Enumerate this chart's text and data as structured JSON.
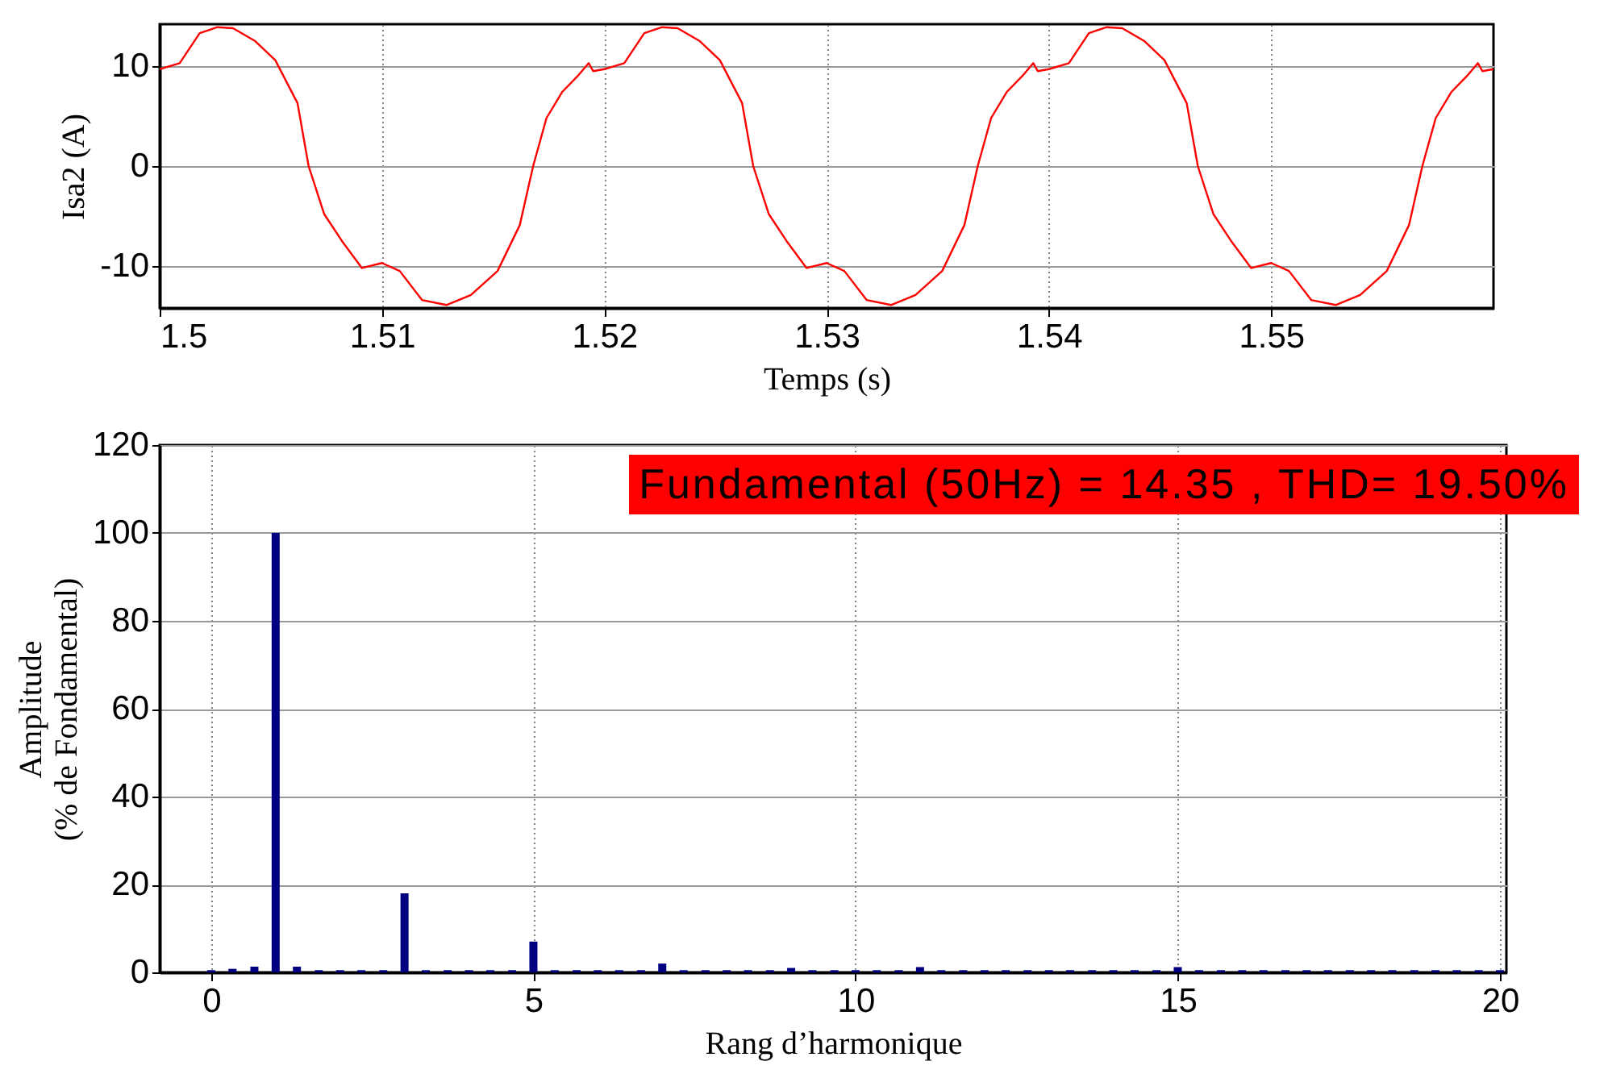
{
  "chart_data": [
    {
      "type": "line",
      "xlabel": "Temps (s)",
      "ylabel": "Isa2 (A)",
      "xlim": [
        1.5,
        1.56
      ],
      "xticks": [
        1.5,
        1.51,
        1.52,
        1.53,
        1.54,
        1.55
      ],
      "ylim": [
        -14.2,
        14.2
      ],
      "yticks": [
        -10,
        0,
        10
      ],
      "grid": true,
      "series": [
        {
          "color": "#ff0000",
          "x": [
            1.5,
            1.5009,
            1.5018,
            1.5026,
            1.5033,
            1.5043,
            1.5052,
            1.5062,
            1.5067,
            1.5074,
            1.5082,
            1.5091,
            1.51,
            1.5108,
            1.5118,
            1.5129,
            1.514,
            1.5152,
            1.5162,
            1.5168,
            1.5174,
            1.5181,
            1.5188,
            1.5193,
            1.5195,
            1.52,
            1.5209,
            1.5218,
            1.5226,
            1.5233,
            1.5243,
            1.5252,
            1.5262,
            1.5267,
            1.5274,
            1.5282,
            1.5291,
            1.53,
            1.5308,
            1.5318,
            1.5329,
            1.534,
            1.5352,
            1.5362,
            1.5368,
            1.5374,
            1.5381,
            1.5388,
            1.5393,
            1.5395,
            1.54,
            1.5409,
            1.5418,
            1.5426,
            1.5433,
            1.5443,
            1.5452,
            1.5462,
            1.5467,
            1.5474,
            1.5482,
            1.5491,
            1.55,
            1.5508,
            1.5518,
            1.5529,
            1.554,
            1.5552,
            1.5562,
            1.5568,
            1.5574,
            1.5581,
            1.5588,
            1.5593,
            1.5595,
            1.56
          ],
          "values": [
            9.7,
            10.3,
            13.3,
            13.9,
            13.8,
            12.5,
            10.6,
            6.3,
            0,
            -4.8,
            -7.5,
            -10.2,
            -9.7,
            -10.5,
            -13.4,
            -13.9,
            -12.9,
            -10.5,
            -5.9,
            0,
            4.8,
            7.4,
            9.0,
            10.3,
            9.5,
            9.7,
            10.3,
            13.3,
            13.9,
            13.8,
            12.5,
            10.6,
            6.3,
            0,
            -4.8,
            -7.5,
            -10.2,
            -9.7,
            -10.5,
            -13.4,
            -13.9,
            -12.9,
            -10.5,
            -5.9,
            0,
            4.8,
            7.4,
            9.0,
            10.3,
            9.5,
            9.7,
            10.3,
            13.3,
            13.9,
            13.8,
            12.5,
            10.6,
            6.3,
            0,
            -4.8,
            -7.5,
            -10.2,
            -9.7,
            -10.5,
            -13.4,
            -13.9,
            -12.9,
            -10.5,
            -5.9,
            0,
            4.8,
            7.4,
            9.0,
            10.3,
            9.5,
            9.7
          ]
        }
      ]
    },
    {
      "type": "bar",
      "xlabel": "Rang d’harmonique",
      "ylabel": "Amplitude\n(% de Fondamental)",
      "xlim": [
        -0.8,
        20.1
      ],
      "xticks": [
        0,
        5,
        10,
        15,
        20
      ],
      "ylim": [
        0,
        120
      ],
      "yticks": [
        0,
        20,
        40,
        60,
        80,
        100,
        120
      ],
      "grid": true,
      "annotations": [
        "Fundamental (50Hz) = 14.35 , THD= 19.50%"
      ],
      "series": [
        {
          "color": "#000080",
          "x": [
            0,
            0.33,
            0.67,
            1,
            1.33,
            1.67,
            2,
            2.33,
            2.67,
            3,
            3.33,
            3.67,
            4,
            4.33,
            4.67,
            5,
            5.33,
            5.67,
            6,
            6.33,
            6.67,
            7,
            7.33,
            7.67,
            8,
            8.33,
            8.67,
            9,
            9.33,
            9.67,
            10,
            10.33,
            10.67,
            11,
            11.33,
            11.67,
            12,
            12.33,
            12.67,
            13,
            13.33,
            13.67,
            14,
            14.33,
            14.67,
            15,
            15.33,
            15.67,
            16,
            16.33,
            16.67,
            17,
            17.33,
            17.67,
            18,
            18.33,
            18.67,
            19,
            19.33,
            19.67,
            20
          ],
          "values": [
            0.5,
            0.8,
            1.3,
            100,
            1.3,
            0.5,
            0.5,
            0.5,
            0.5,
            18,
            0.5,
            0.5,
            0.5,
            0.5,
            0.5,
            7,
            0.5,
            0.5,
            0.5,
            0.5,
            0.5,
            2,
            0.5,
            0.5,
            0.5,
            0.5,
            0.5,
            1,
            0.5,
            0.5,
            0.5,
            0.5,
            0.5,
            1.2,
            0.5,
            0.5,
            0.5,
            0.5,
            0.5,
            0.5,
            0.5,
            0.5,
            0.5,
            0.5,
            0.5,
            1.2,
            0.5,
            0.5,
            0.5,
            0.5,
            0.5,
            0.5,
            0.5,
            0.5,
            0.5,
            0.5,
            0.5,
            0.5,
            0.5,
            0.5,
            0.5
          ]
        }
      ]
    }
  ]
}
